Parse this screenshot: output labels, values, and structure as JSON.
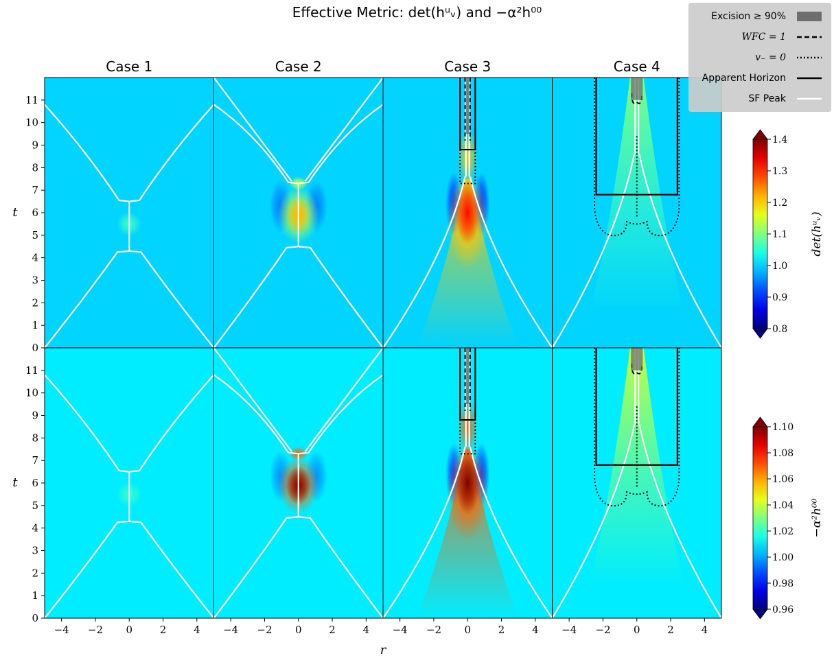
{
  "title": "Effective Metric: det(hᵘᵥ) and −α²h⁰⁰",
  "chart_data": {
    "type": "heatmap",
    "grid": false,
    "cases": [
      "Case 1",
      "Case 2",
      "Case 3",
      "Case 4"
    ],
    "xlabel": "r",
    "ylabel": "t",
    "xlim": [
      -5,
      5
    ],
    "ylim": [
      0,
      12
    ],
    "xticks": [
      -4,
      -2,
      0,
      2,
      4
    ],
    "xtick_labels": [
      "−4",
      "−2",
      "0",
      "2",
      "4"
    ],
    "yticks": [
      0,
      1,
      2,
      3,
      4,
      5,
      6,
      7,
      8,
      9,
      10,
      11
    ],
    "ytick_labels": [
      "0",
      "1",
      "2",
      "3",
      "4",
      "5",
      "6",
      "7",
      "8",
      "9",
      "10",
      "11"
    ],
    "rows": [
      {
        "quantity": "det(hᵘᵥ)",
        "colorbar_label": "det(hᵘᵥ)",
        "clim": [
          0.8,
          1.4
        ],
        "background": 1.0,
        "colorbar_ticks": [
          0.8,
          0.9,
          1.0,
          1.1,
          1.2,
          1.3,
          1.4
        ],
        "colorbar_tick_labels": [
          "0.8",
          "0.9",
          "1.0",
          "1.1",
          "1.2",
          "1.3",
          "1.4"
        ],
        "peak_values": [
          1.06,
          1.22,
          1.32,
          1.1
        ]
      },
      {
        "quantity": "−α²h⁰⁰",
        "colorbar_label": "−α²h⁰⁰",
        "clim": [
          0.96,
          1.1
        ],
        "background": 1.01,
        "colorbar_ticks": [
          0.96,
          0.98,
          1.0,
          1.02,
          1.04,
          1.06,
          1.08,
          1.1
        ],
        "colorbar_tick_labels": [
          "0.96",
          "0.98",
          "1.00",
          "1.02",
          "1.04",
          "1.06",
          "1.08",
          "1.10"
        ],
        "peak_values": [
          1.02,
          1.1,
          1.1,
          1.04
        ]
      }
    ],
    "sf_peak": [
      {
        "case": "Case 1",
        "cross_t": [
          4.3,
          6.5
        ]
      },
      {
        "case": "Case 2",
        "cross_t": [
          4.5,
          7.3
        ]
      },
      {
        "case": "Case 3",
        "merge_t": 7.6
      },
      {
        "case": "Case 4",
        "merge_t": 8.6
      }
    ],
    "apparent_horizon": [
      {
        "case": "Case 3",
        "t_start": 8.8,
        "r_halfwidth": 0.45
      },
      {
        "case": "Case 4",
        "t_start": 6.8,
        "r_halfwidth": 2.4
      }
    ],
    "excision": [
      {
        "case": "Case 3",
        "t_start": 9.5,
        "r_halfwidth": 0.1
      },
      {
        "case": "Case 4",
        "t_start": 11.0,
        "r_halfwidth": 0.35
      }
    ],
    "legend": {
      "placement": "top-right",
      "entries": [
        {
          "label": "Excision ≥ 90%",
          "style": "patch",
          "color": "#6e6e6e"
        },
        {
          "label": "WFC = 1",
          "style": "dashed",
          "color": "#000000"
        },
        {
          "label": "v₋ = 0",
          "style": "dotted",
          "color": "#000000"
        },
        {
          "label": "Apparent Horizon",
          "style": "solid",
          "color": "#000000"
        },
        {
          "label": "SF Peak",
          "style": "solid",
          "color": "#ffffff"
        }
      ]
    },
    "colormap": "jet"
  }
}
